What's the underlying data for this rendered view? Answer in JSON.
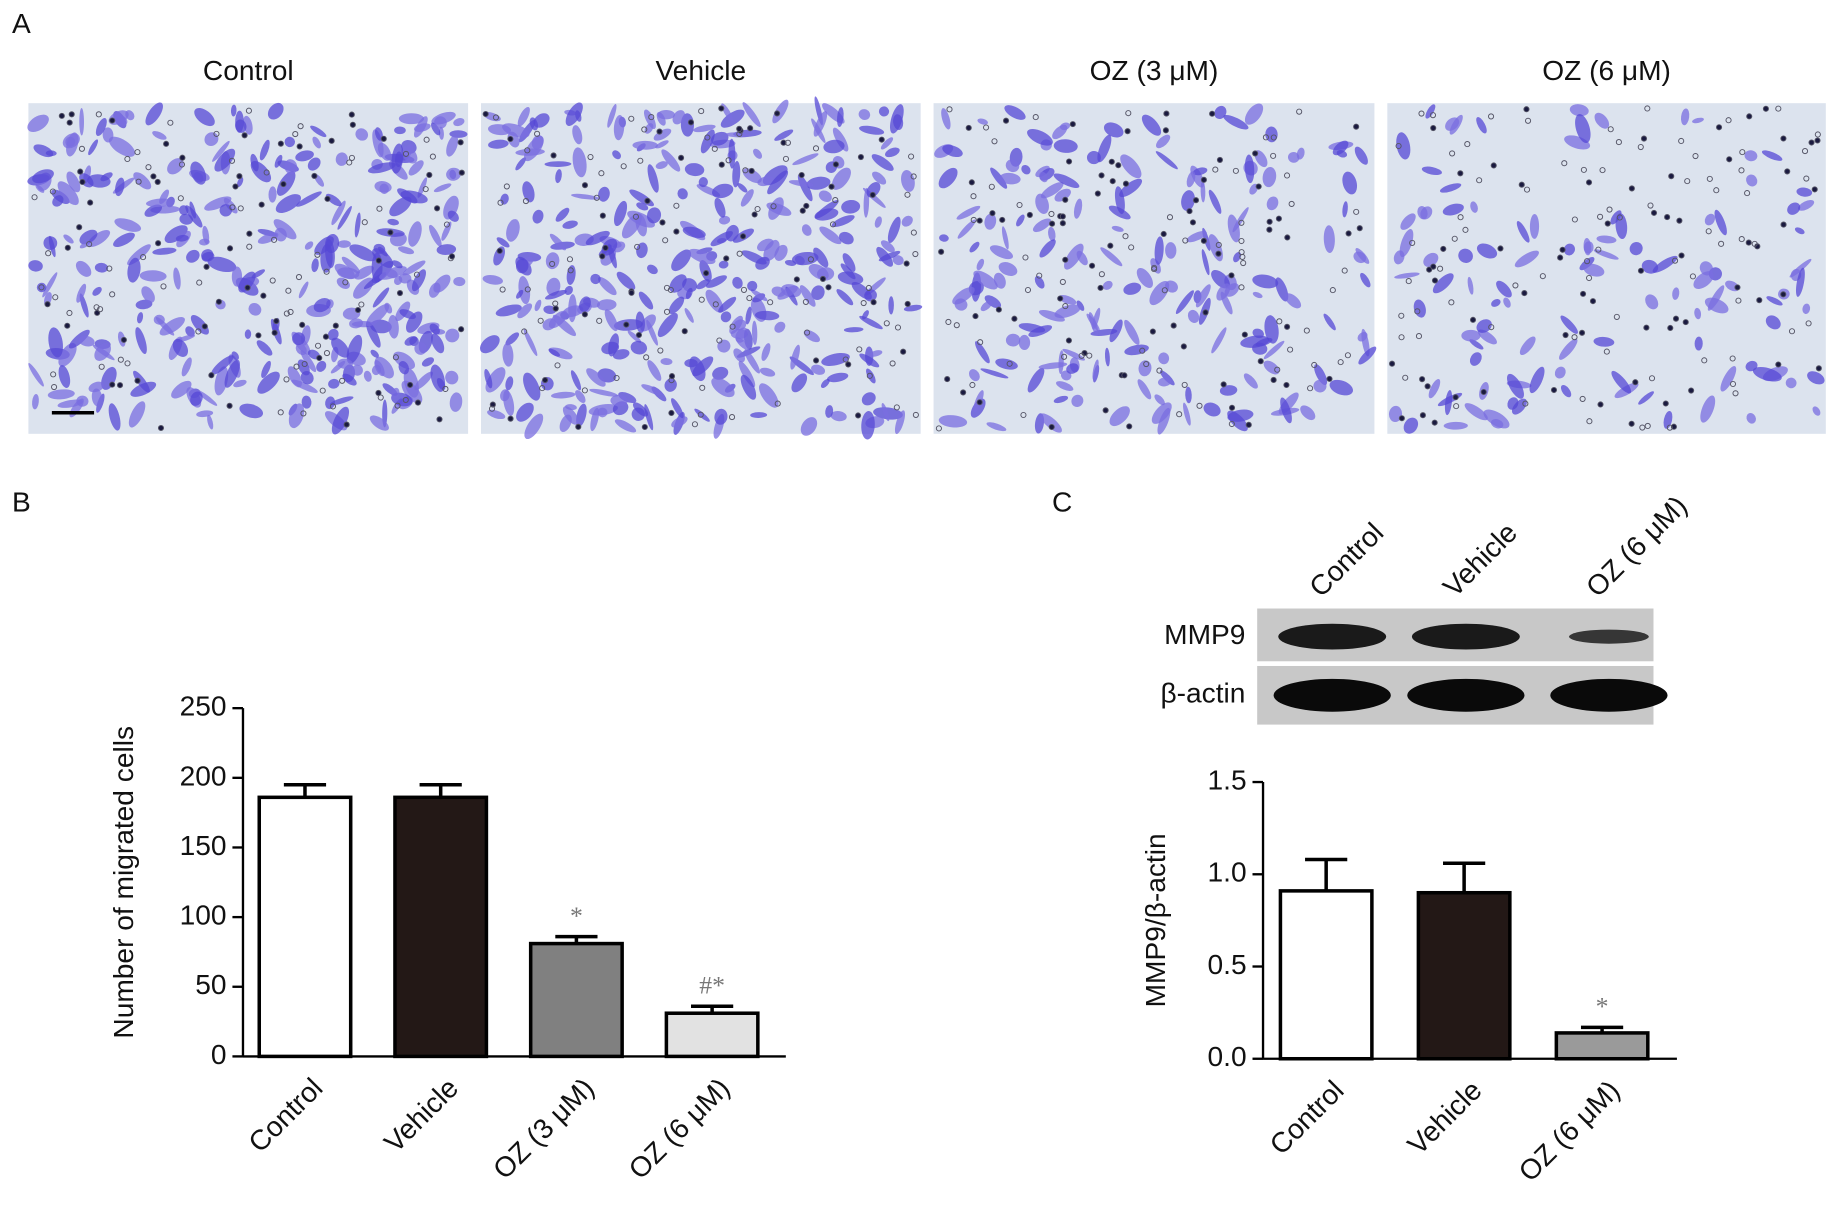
{
  "panel_labels": [
    "A",
    "B",
    "C"
  ],
  "micrographs": {
    "titles": [
      "Control",
      "Vehicle",
      "OZ (3 μM)",
      "OZ (6 μM)"
    ]
  },
  "blot": {
    "lanes": [
      "Control",
      "Vehicle",
      "OZ (6 μM)"
    ],
    "rows": [
      "MMP9",
      "β-actin"
    ]
  },
  "chart_data": [
    {
      "type": "bar",
      "ylabel": "Number of migrated cells",
      "categories": [
        "Control",
        "Vehicle",
        "OZ (3 μM)",
        "OZ (6 μM)"
      ],
      "values": [
        186,
        186,
        81,
        31
      ],
      "errors": [
        9,
        9,
        5,
        5
      ],
      "colors": [
        "#ffffff",
        "#231816",
        "#808080",
        "#e2e2e2"
      ],
      "annotations": [
        null,
        null,
        "*",
        "#*"
      ],
      "ylim": [
        0,
        250
      ],
      "yticks": [
        0,
        50,
        100,
        150,
        200,
        250
      ]
    },
    {
      "type": "bar",
      "ylabel": "MMP9/β-actin",
      "categories": [
        "Control",
        "Vehicle",
        "OZ (6 μM)"
      ],
      "values": [
        0.91,
        0.9,
        0.14
      ],
      "errors": [
        0.17,
        0.16,
        0.03
      ],
      "colors": [
        "#ffffff",
        "#231816",
        "#9a9a9a"
      ],
      "annotations": [
        null,
        null,
        "*"
      ],
      "ylim": [
        0,
        1.5
      ],
      "yticks": [
        {
          "value": 0,
          "label": "0.0"
        },
        {
          "value": 0.5,
          "label": "0.5"
        },
        {
          "value": 1,
          "label": "1.0"
        },
        {
          "value": 1.5,
          "label": "1.5"
        }
      ]
    }
  ]
}
